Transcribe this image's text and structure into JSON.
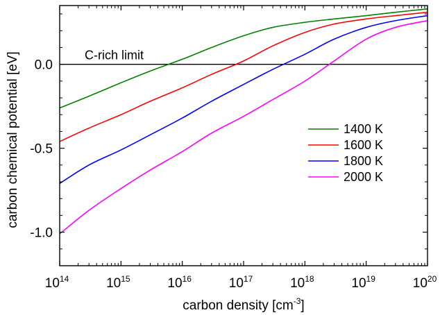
{
  "chart_data": {
    "type": "line",
    "title": "",
    "xlabel": "carbon density [cm",
    "xlabel_sup": "-3",
    "xlabel_end": "]",
    "ylabel": "carbon chemical potential [eV]",
    "xscale": "log",
    "xlim": [
      100000000000000.0,
      1e+20
    ],
    "ylim": [
      -1.2,
      0.35
    ],
    "x_ticks": [
      {
        "base": "10",
        "exp": "14"
      },
      {
        "base": "10",
        "exp": "15"
      },
      {
        "base": "10",
        "exp": "16"
      },
      {
        "base": "10",
        "exp": "17"
      },
      {
        "base": "10",
        "exp": "18"
      },
      {
        "base": "10",
        "exp": "19"
      },
      {
        "base": "10",
        "exp": "20"
      }
    ],
    "y_ticks": [
      "0.0",
      "-0.5",
      "-1.0"
    ],
    "grid": false,
    "legend_position": "right",
    "reference_line": {
      "label": "C-rich limit",
      "y": 0.0
    },
    "series": [
      {
        "name": "1400 K",
        "color": "#008000",
        "x": [
          100000000000000.0,
          300000000000000.0,
          1000000000000000.0,
          3000000000000000.0,
          1e+16,
          3e+16,
          1e+17,
          3e+17,
          1e+18,
          3e+18,
          1e+19,
          3e+19,
          1e+20
        ],
        "y": [
          -0.26,
          -0.19,
          -0.11,
          -0.04,
          0.03,
          0.1,
          0.17,
          0.22,
          0.25,
          0.27,
          0.29,
          0.31,
          0.33
        ]
      },
      {
        "name": "1600 K",
        "color": "#ff0000",
        "x": [
          100000000000000.0,
          300000000000000.0,
          1000000000000000.0,
          3000000000000000.0,
          1e+16,
          3e+16,
          1e+17,
          3e+17,
          1e+18,
          3e+18,
          1e+19,
          3e+19,
          1e+20
        ],
        "y": [
          -0.46,
          -0.38,
          -0.3,
          -0.22,
          -0.14,
          -0.06,
          0.02,
          0.11,
          0.19,
          0.24,
          0.27,
          0.29,
          0.31
        ]
      },
      {
        "name": "1800 K",
        "color": "#0000ff",
        "x": [
          100000000000000.0,
          300000000000000.0,
          1000000000000000.0,
          3000000000000000.0,
          1e+16,
          3e+16,
          1e+17,
          3e+17,
          1e+18,
          3e+18,
          1e+19,
          3e+19,
          1e+20
        ],
        "y": [
          -0.71,
          -0.6,
          -0.51,
          -0.42,
          -0.32,
          -0.22,
          -0.12,
          -0.03,
          0.06,
          0.15,
          0.22,
          0.26,
          0.29
        ]
      },
      {
        "name": "2000 K",
        "color": "#ff00ff",
        "x": [
          100000000000000.0,
          300000000000000.0,
          1000000000000000.0,
          3000000000000000.0,
          1e+16,
          3e+16,
          1e+17,
          3e+17,
          1e+18,
          3e+18,
          1e+19,
          3e+19,
          1e+20
        ],
        "y": [
          -1.01,
          -0.87,
          -0.74,
          -0.63,
          -0.52,
          -0.41,
          -0.31,
          -0.21,
          -0.1,
          0.02,
          0.15,
          0.22,
          0.26
        ]
      }
    ]
  }
}
